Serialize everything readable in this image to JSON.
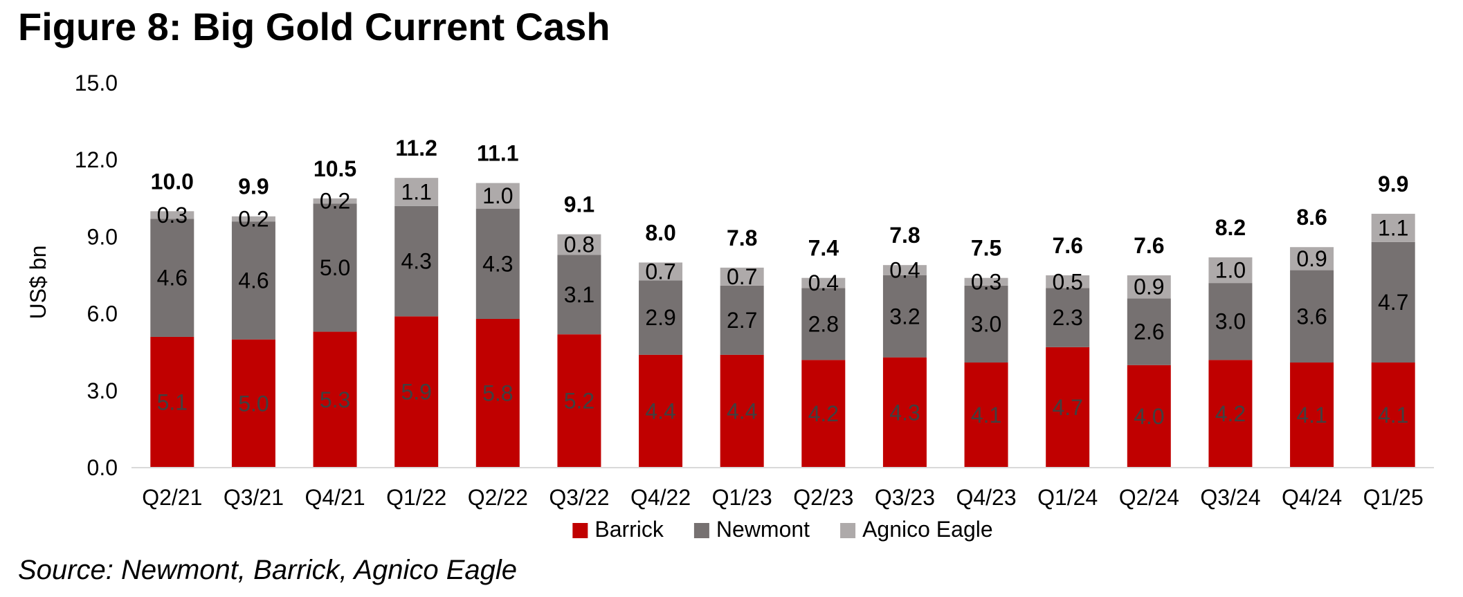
{
  "title": "Figure 8: Big Gold Current Cash",
  "source": "Source: Newmont, Barrick, Agnico Eagle",
  "chart_data": {
    "type": "bar",
    "stacked": true,
    "categories": [
      "Q2/21",
      "Q3/21",
      "Q4/21",
      "Q1/22",
      "Q2/22",
      "Q3/22",
      "Q4/22",
      "Q1/23",
      "Q2/23",
      "Q3/23",
      "Q4/23",
      "Q1/24",
      "Q2/24",
      "Q3/24",
      "Q4/24",
      "Q1/25"
    ],
    "series": [
      {
        "name": "Barrick",
        "color": "#c00000",
        "label_color": "#404040",
        "values": [
          5.1,
          5.0,
          5.3,
          5.9,
          5.8,
          5.2,
          4.4,
          4.4,
          4.2,
          4.3,
          4.1,
          4.7,
          4.0,
          4.2,
          4.1,
          4.1
        ],
        "labels": [
          "5.1",
          "5.0",
          "5.3",
          "5.9",
          "5.8",
          "5.2",
          "4.4",
          "4.4",
          "4.2",
          "4.3",
          "4.1",
          "4.7",
          "4.0",
          "4.2",
          "4.1",
          "4.1"
        ]
      },
      {
        "name": "Newmont",
        "color": "#767171",
        "label_color": "#000000",
        "values": [
          4.6,
          4.6,
          5.0,
          4.3,
          4.3,
          3.1,
          2.9,
          2.7,
          2.8,
          3.2,
          3.0,
          2.3,
          2.6,
          3.0,
          3.6,
          4.7
        ],
        "labels": [
          "4.6",
          "4.6",
          "5.0",
          "4.3",
          "4.3",
          "3.1",
          "2.9",
          "2.7",
          "2.8",
          "3.2",
          "3.0",
          "2.3",
          "2.6",
          "3.0",
          "3.6",
          "4.7"
        ]
      },
      {
        "name": "Agnico Eagle",
        "color": "#aeaaaa",
        "label_color": "#000000",
        "values": [
          0.3,
          0.2,
          0.2,
          1.1,
          1.0,
          0.8,
          0.7,
          0.7,
          0.4,
          0.4,
          0.3,
          0.5,
          0.9,
          1.0,
          0.9,
          1.1
        ],
        "labels": [
          "0.3",
          "0.2",
          "0.2",
          "1.1",
          "1.0",
          "0.8",
          "0.7",
          "0.7",
          "0.4",
          "0.4",
          "0.3",
          "0.5",
          "0.9",
          "1.0",
          "0.9",
          "1.1"
        ]
      }
    ],
    "totals": [
      "10.0",
      "9.9",
      "10.5",
      "11.2",
      "11.1",
      "9.1",
      "8.0",
      "7.8",
      "7.4",
      "7.8",
      "7.5",
      "7.6",
      "7.6",
      "8.2",
      "8.6",
      "9.9"
    ],
    "ylabel": "US$ bn",
    "ylim": [
      0,
      15
    ],
    "yticks": [
      "0.0",
      "3.0",
      "6.0",
      "9.0",
      "12.0",
      "15.0"
    ],
    "ytick_values": [
      0,
      3,
      6,
      9,
      12,
      15
    ],
    "grid": false,
    "legend_position": "bottom-center"
  }
}
